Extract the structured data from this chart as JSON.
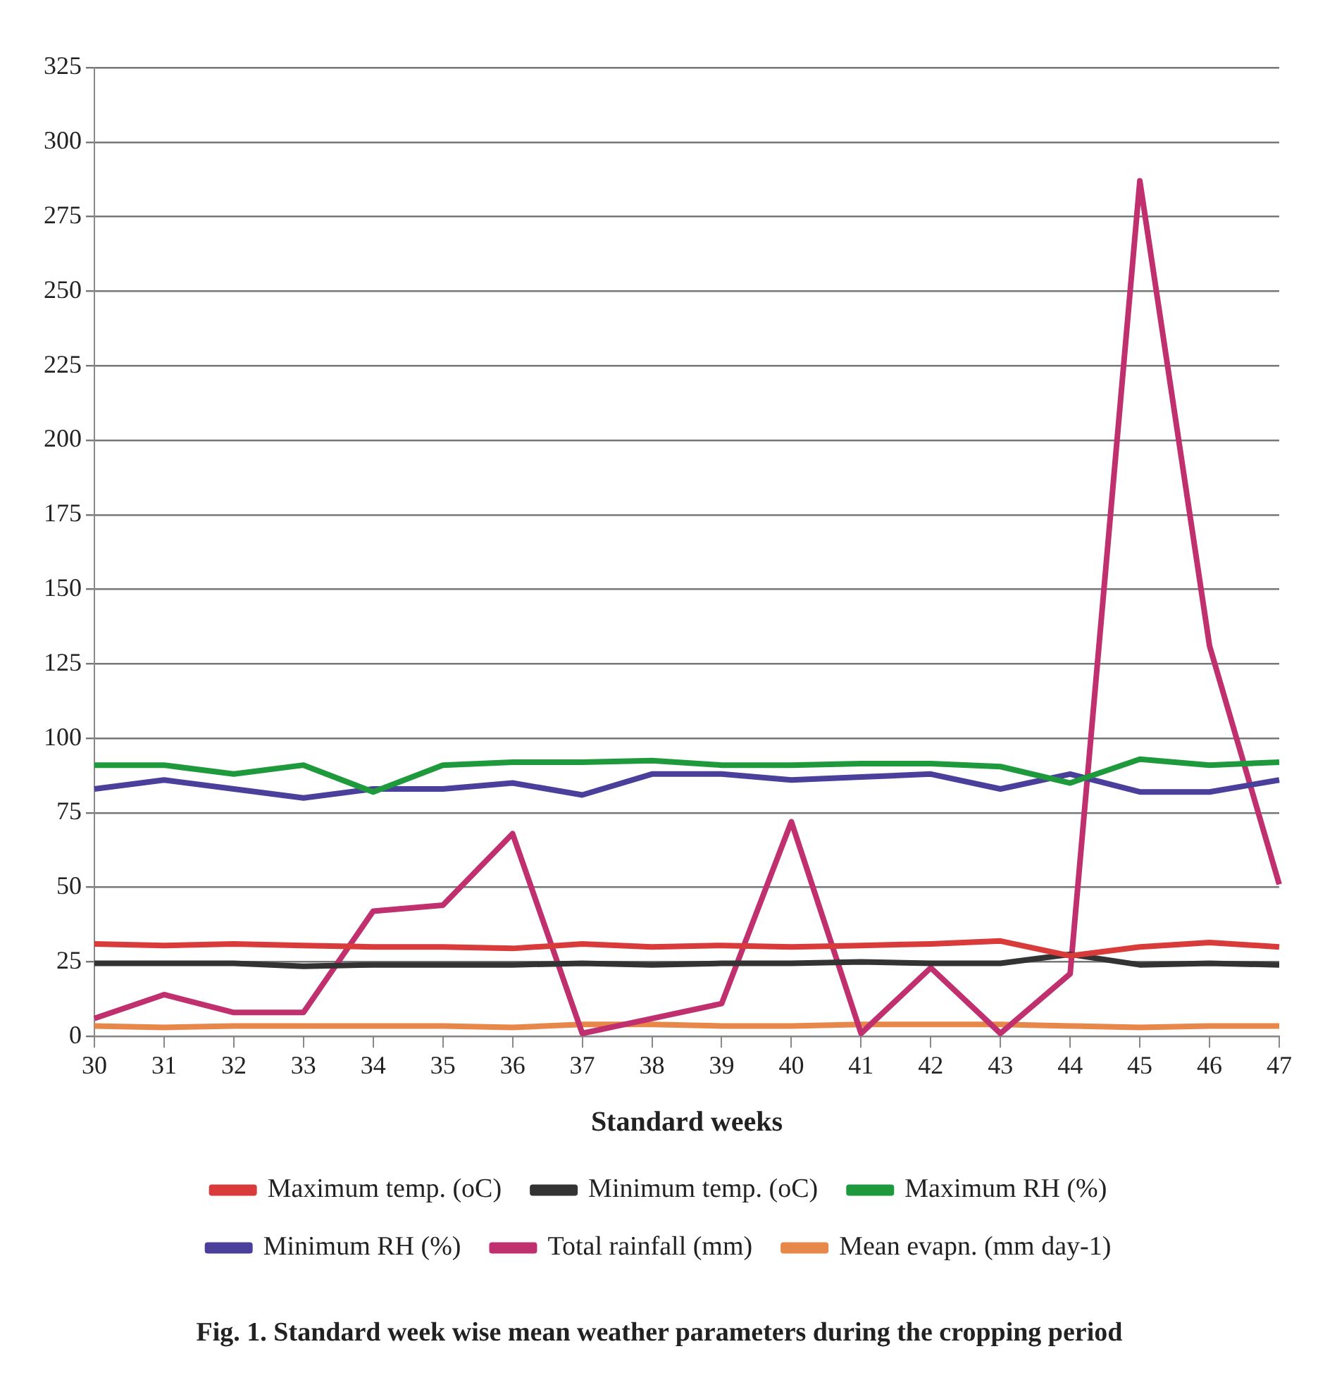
{
  "chart_data": {
    "type": "line",
    "title": "Fig. 1. Standard week wise mean weather parameters during the cropping period",
    "xlabel": "Standard weeks",
    "categories": [
      "30",
      "31",
      "32",
      "33",
      "34",
      "35",
      "36",
      "37",
      "38",
      "39",
      "40",
      "41",
      "42",
      "43",
      "44",
      "45",
      "46",
      "47"
    ],
    "ylim": [
      0,
      325
    ],
    "yticks": [
      0,
      25,
      50,
      75,
      100,
      125,
      150,
      175,
      200,
      225,
      250,
      275,
      300,
      325
    ],
    "grid": "y",
    "legend": "bottom",
    "marker": "none",
    "line_style": "solid",
    "series": [
      {
        "name": "Maximum temp. (oC)",
        "color": "#d93a3a",
        "values": [
          31,
          30.5,
          31,
          30.5,
          30,
          30,
          29.5,
          31,
          30,
          30.5,
          30,
          30.5,
          31,
          32,
          27,
          30,
          31.5,
          30
        ]
      },
      {
        "name": "Minimum temp. (oC)",
        "color": "#333333",
        "values": [
          24.5,
          24.5,
          24.5,
          23.5,
          24,
          24,
          24,
          24.5,
          24,
          24.5,
          24.5,
          25,
          24.5,
          24.5,
          27.5,
          24,
          24.5,
          24
        ]
      },
      {
        "name": "Maximum RH (%)",
        "color": "#1e9a3c",
        "values": [
          91,
          91,
          88,
          91,
          82,
          91,
          92,
          92,
          92.5,
          91,
          91,
          91.5,
          91.5,
          90.5,
          85,
          93,
          91,
          92
        ]
      },
      {
        "name": "Minimum RH (%)",
        "color": "#4a3f9a",
        "values": [
          83,
          86,
          83,
          80,
          83,
          83,
          85,
          81,
          88,
          88,
          86,
          87,
          88,
          83,
          88,
          82,
          82,
          86
        ]
      },
      {
        "name": "Total rainfall (mm)",
        "color": "#c0306e",
        "values": [
          6,
          14,
          8,
          8,
          42,
          44,
          68,
          1,
          6,
          11,
          72,
          1,
          23,
          1,
          21,
          287,
          131,
          51
        ]
      },
      {
        "name": "Mean evapn. (mm day-1)",
        "color": "#e8874a",
        "values": [
          3.5,
          3,
          3.5,
          3.5,
          3.5,
          3.5,
          3,
          4,
          4,
          3.5,
          3.5,
          4,
          4,
          4,
          3.5,
          3,
          3.5,
          3.5
        ]
      }
    ]
  }
}
